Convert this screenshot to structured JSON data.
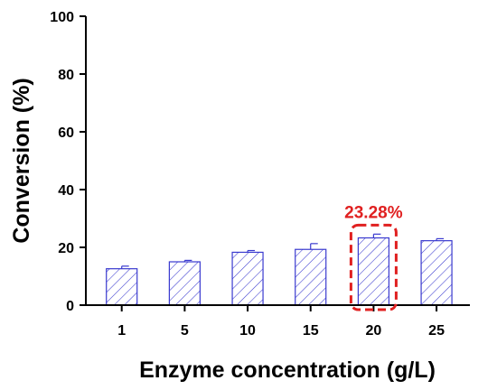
{
  "chart_data": {
    "type": "bar",
    "categories": [
      "1",
      "5",
      "10",
      "15",
      "20",
      "25"
    ],
    "values": [
      12.6,
      15.0,
      18.3,
      19.3,
      23.28,
      22.3
    ],
    "errors": [
      0.9,
      0.5,
      0.6,
      2.0,
      1.3,
      0.7
    ],
    "xlabel": "Enzyme concentration (g/L)",
    "ylabel": "Conversion (%)",
    "ylim": [
      0,
      100
    ],
    "yticks": [
      "0",
      "20",
      "40",
      "60",
      "80",
      "100"
    ],
    "bar_color": "#3a3acf",
    "grid": false,
    "highlight": {
      "category": "20",
      "label": "23.28%",
      "color": "#e02020"
    }
  }
}
